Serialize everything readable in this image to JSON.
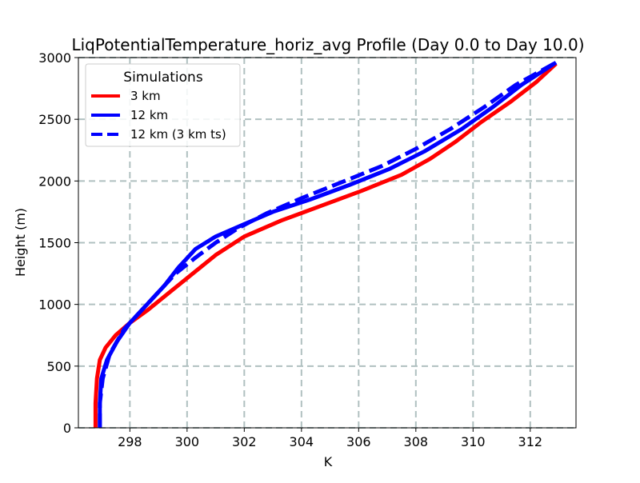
{
  "chart_data": {
    "type": "line",
    "title": "LiqPotentialTemperature_horiz_avg Profile (Day 0.0 to Day 10.0)",
    "xlabel": "K",
    "ylabel": "Height (m)",
    "xlim": [
      296.2,
      313.6
    ],
    "ylim": [
      0,
      3000
    ],
    "xticks": [
      298,
      300,
      302,
      304,
      306,
      308,
      310,
      312
    ],
    "yticks": [
      0,
      500,
      1000,
      1500,
      2000,
      2500,
      3000
    ],
    "grid": true,
    "legend": {
      "title": "Simulations",
      "placement": "upper-left"
    },
    "series": [
      {
        "name": "3 km",
        "color": "#ff0000",
        "dash": "solid",
        "x": [
          296.8,
          296.8,
          296.85,
          296.95,
          297.15,
          297.5,
          298.0,
          298.6,
          299.4,
          300.2,
          301.0,
          302.0,
          303.3,
          304.7,
          306.1,
          307.5,
          308.5,
          309.4,
          310.3,
          311.3,
          312.2,
          312.9
        ],
        "y": [
          0,
          200,
          400,
          550,
          650,
          750,
          850,
          950,
          1100,
          1250,
          1400,
          1550,
          1680,
          1800,
          1920,
          2050,
          2180,
          2320,
          2480,
          2640,
          2800,
          2950
        ]
      },
      {
        "name": "12 km",
        "color": "#0000ff",
        "dash": "solid",
        "x": [
          296.95,
          296.95,
          297.0,
          297.2,
          297.55,
          298.0,
          298.6,
          299.2,
          299.7,
          300.3,
          301.0,
          302.0,
          303.0,
          304.3,
          305.7,
          307.1,
          308.3,
          309.6,
          310.7,
          311.7,
          312.9
        ],
        "y": [
          0,
          200,
          400,
          550,
          700,
          850,
          1000,
          1150,
          1300,
          1450,
          1550,
          1650,
          1750,
          1850,
          1970,
          2100,
          2240,
          2420,
          2600,
          2780,
          2960
        ]
      },
      {
        "name": "12 km (3 km ts)",
        "color": "#0000ff",
        "dash": "dashed",
        "x": [
          296.95,
          296.95,
          297.05,
          297.3,
          297.8,
          298.4,
          299.0,
          299.6,
          300.3,
          301.0,
          301.8,
          302.8,
          304.0,
          305.4,
          306.8,
          308.0,
          309.2,
          310.4,
          311.5,
          312.9
        ],
        "y": [
          0,
          200,
          400,
          600,
          800,
          950,
          1100,
          1250,
          1380,
          1500,
          1620,
          1740,
          1860,
          1990,
          2120,
          2260,
          2420,
          2600,
          2780,
          2960
        ]
      }
    ]
  }
}
